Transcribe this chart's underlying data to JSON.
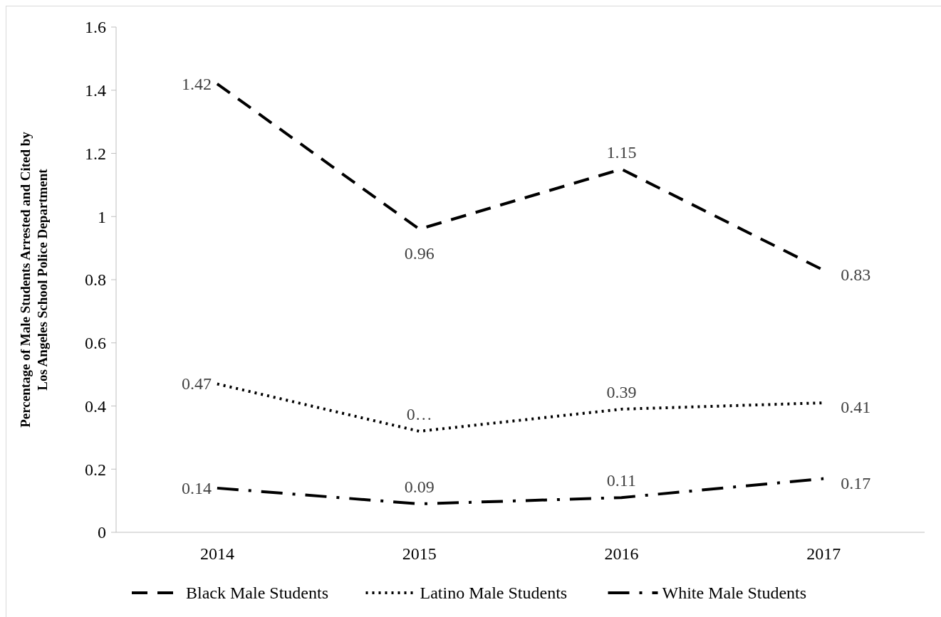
{
  "chart_data": {
    "type": "line",
    "ylabel": "Percentage of Male Students Arrested and Cited by Los Angeles School Police Department",
    "categories": [
      "2014",
      "2015",
      "2016",
      "2017"
    ],
    "series": [
      {
        "name": "Black Male Students",
        "color": "#000000",
        "line_style": "dashed",
        "values": [
          1.42,
          0.96,
          1.15,
          0.83
        ],
        "value_labels": [
          "1.42",
          "0.96",
          "1.15",
          "0.83"
        ]
      },
      {
        "name": "Latino Male Students",
        "color": "#000000",
        "line_style": "dotted",
        "values": [
          0.47,
          0.32,
          0.39,
          0.41
        ],
        "value_labels": [
          "0.47",
          "0…",
          "0.39",
          "0.41"
        ]
      },
      {
        "name": "White Male Students",
        "color": "#000000",
        "line_style": "dashdot",
        "values": [
          0.14,
          0.09,
          0.11,
          0.17
        ],
        "value_labels": [
          "0.14",
          "0.09",
          "0.11",
          "0.17"
        ]
      }
    ],
    "ylim": [
      0,
      1.6
    ],
    "yticks": [
      0,
      0.2,
      0.4,
      0.6,
      0.8,
      1,
      1.2,
      1.4,
      1.6
    ],
    "grid": false,
    "legend": "bottom",
    "marker": "none"
  }
}
